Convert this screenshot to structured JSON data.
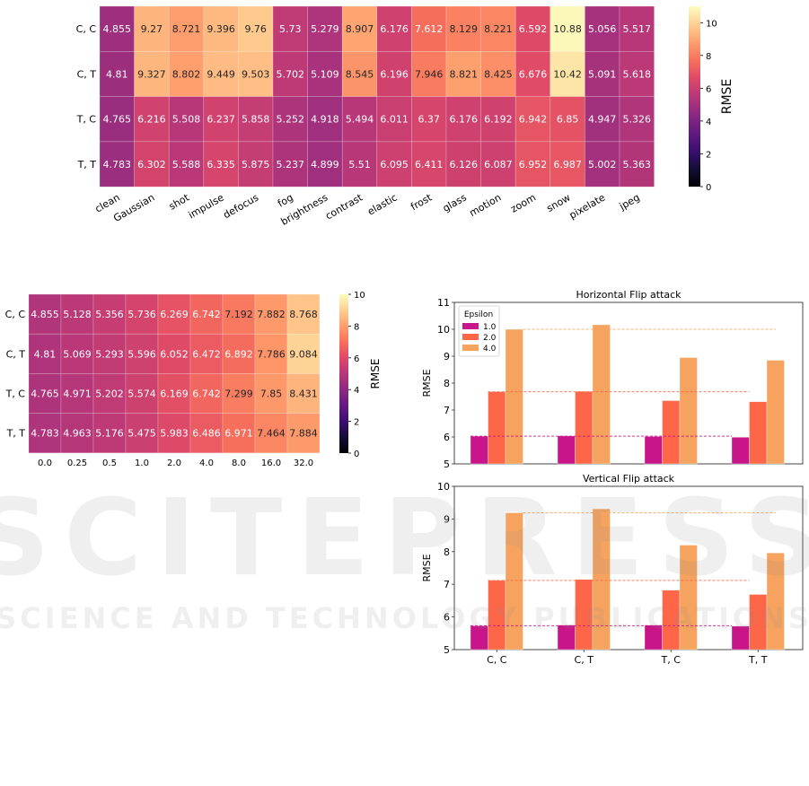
{
  "chart_data": [
    {
      "id": "corruption-heatmap",
      "type": "heatmap",
      "title": "",
      "rows": [
        "C, C",
        "C, T",
        "T, C",
        "T, T"
      ],
      "columns": [
        "clean",
        "Gaussian",
        "shot",
        "impulse",
        "defocus",
        "fog",
        "brightness",
        "contrast",
        "elastic",
        "frost",
        "glass",
        "motion",
        "zoom",
        "snow",
        "pixelate",
        "jpeg"
      ],
      "values": [
        [
          4.855,
          9.27,
          8.721,
          9.396,
          9.76,
          5.73,
          5.279,
          8.907,
          6.176,
          7.612,
          8.129,
          8.221,
          6.592,
          10.88,
          5.056,
          5.517
        ],
        [
          4.81,
          9.327,
          8.802,
          9.449,
          9.503,
          5.702,
          5.109,
          8.545,
          6.196,
          7.946,
          8.821,
          8.425,
          6.676,
          10.42,
          5.091,
          5.618
        ],
        [
          4.765,
          6.216,
          5.508,
          6.237,
          5.858,
          5.252,
          4.918,
          5.494,
          6.011,
          6.37,
          6.176,
          6.192,
          6.942,
          6.85,
          4.947,
          5.326
        ],
        [
          4.783,
          6.302,
          5.588,
          6.335,
          5.875,
          5.237,
          4.899,
          5.51,
          6.095,
          6.411,
          6.126,
          6.087,
          6.952,
          6.987,
          5.002,
          5.363
        ]
      ],
      "labels": [
        "4.855",
        "9.27",
        "8.721",
        "9.396",
        "9.76",
        "5.73",
        "5.279",
        "8.907",
        "6.176",
        "7.612",
        "8.129",
        "8.221",
        "6.592",
        "10.88",
        "5.056",
        "5.517",
        "4.81",
        "9.327",
        "8.802",
        "9.449",
        "9.503",
        "5.702",
        "5.109",
        "8.545",
        "6.196",
        "7.946",
        "8.821",
        "8.425",
        "6.676",
        "10.42",
        "5.091",
        "5.618",
        "4.765",
        "6.216",
        "5.508",
        "6.237",
        "5.858",
        "5.252",
        "4.918",
        "5.494",
        "6.011",
        "6.37",
        "6.176",
        "6.192",
        "6.942",
        "6.85",
        "4.947",
        "5.326",
        "4.783",
        "6.302",
        "5.588",
        "6.335",
        "5.875",
        "5.237",
        "4.899",
        "5.51",
        "6.095",
        "6.411",
        "6.126",
        "6.087",
        "6.952",
        "6.987",
        "5.002",
        "5.363"
      ],
      "colormap": "magma",
      "colorbar": {
        "label": "RMSE",
        "range": [
          0,
          11
        ],
        "ticks": [
          "0",
          "2",
          "4",
          "6",
          "8",
          "10"
        ]
      }
    },
    {
      "id": "epsilon-heatmap",
      "type": "heatmap",
      "title": "",
      "rows": [
        "C, C",
        "C, T",
        "T, C",
        "T, T"
      ],
      "columns": [
        "0.0",
        "0.25",
        "0.5",
        "1.0",
        "2.0",
        "4.0",
        "8.0",
        "16.0",
        "32.0"
      ],
      "values": [
        [
          4.855,
          5.128,
          5.356,
          5.736,
          6.269,
          6.742,
          7.192,
          7.882,
          8.768
        ],
        [
          4.81,
          5.069,
          5.293,
          5.596,
          6.052,
          6.472,
          6.892,
          7.786,
          9.084
        ],
        [
          4.765,
          4.971,
          5.202,
          5.574,
          6.169,
          6.742,
          7.299,
          7.85,
          8.431
        ],
        [
          4.783,
          4.963,
          5.176,
          5.475,
          5.983,
          6.486,
          6.971,
          7.464,
          7.884
        ]
      ],
      "labels": [
        "4.855",
        "5.128",
        "5.356",
        "5.736",
        "6.269",
        "6.742",
        "7.192",
        "7.882",
        "8.768",
        "4.81",
        "5.069",
        "5.293",
        "5.596",
        "6.052",
        "6.472",
        "6.892",
        "7.786",
        "9.084",
        "4.765",
        "4.971",
        "5.202",
        "5.574",
        "6.169",
        "6.742",
        "7.299",
        "7.85",
        "8.431",
        "4.783",
        "4.963",
        "5.176",
        "5.475",
        "5.983",
        "6.486",
        "6.971",
        "7.464",
        "7.884"
      ],
      "colormap": "magma",
      "colorbar": {
        "label": "RMSE",
        "range": [
          0,
          10
        ],
        "ticks": [
          "0",
          "2",
          "4",
          "6",
          "8",
          "10"
        ]
      }
    },
    {
      "id": "horizontal-flip",
      "type": "bar",
      "title": "Horizontal Flip attack",
      "xlabel": "",
      "ylabel": "RMSE",
      "ylim": [
        5,
        11
      ],
      "yticks": [
        "5",
        "6",
        "7",
        "8",
        "9",
        "10",
        "11"
      ],
      "categories": [
        "C, C",
        "C, T",
        "T, C",
        "T, T"
      ],
      "show_xticklabels": false,
      "legend": {
        "title": "Epsilon",
        "placement": "top-left"
      },
      "series": [
        {
          "name": "1.0",
          "color": "#c8168a",
          "values": [
            6.03,
            6.04,
            6.02,
            5.99
          ]
        },
        {
          "name": "2.0",
          "color": "#fd6647",
          "values": [
            7.68,
            7.69,
            7.35,
            7.31
          ]
        },
        {
          "name": "4.0",
          "color": "#f5a35e",
          "values": [
            10.0,
            10.17,
            8.95,
            8.85
          ]
        }
      ],
      "reference_lines": [
        6.03,
        7.68,
        10.0
      ]
    },
    {
      "id": "vertical-flip",
      "type": "bar",
      "title": "Vertical Flip attack",
      "xlabel": "",
      "ylabel": "RMSE",
      "ylim": [
        5,
        10
      ],
      "yticks": [
        "5",
        "6",
        "7",
        "8",
        "9",
        "10"
      ],
      "categories": [
        "C, C",
        "C, T",
        "T, C",
        "T, T"
      ],
      "show_xticklabels": true,
      "series": [
        {
          "name": "1.0",
          "color": "#c8168a",
          "values": [
            5.73,
            5.75,
            5.75,
            5.72
          ]
        },
        {
          "name": "2.0",
          "color": "#fd6647",
          "values": [
            7.12,
            7.15,
            6.82,
            6.69
          ]
        },
        {
          "name": "4.0",
          "color": "#f5a35e",
          "values": [
            9.19,
            9.31,
            8.2,
            7.96
          ]
        }
      ],
      "reference_lines": [
        5.73,
        7.12,
        9.19
      ]
    }
  ],
  "watermark": {
    "line1": "SCITEPRESS",
    "line2": "SCIENCE AND TECHNOLOGY PUBLICATIONS"
  }
}
